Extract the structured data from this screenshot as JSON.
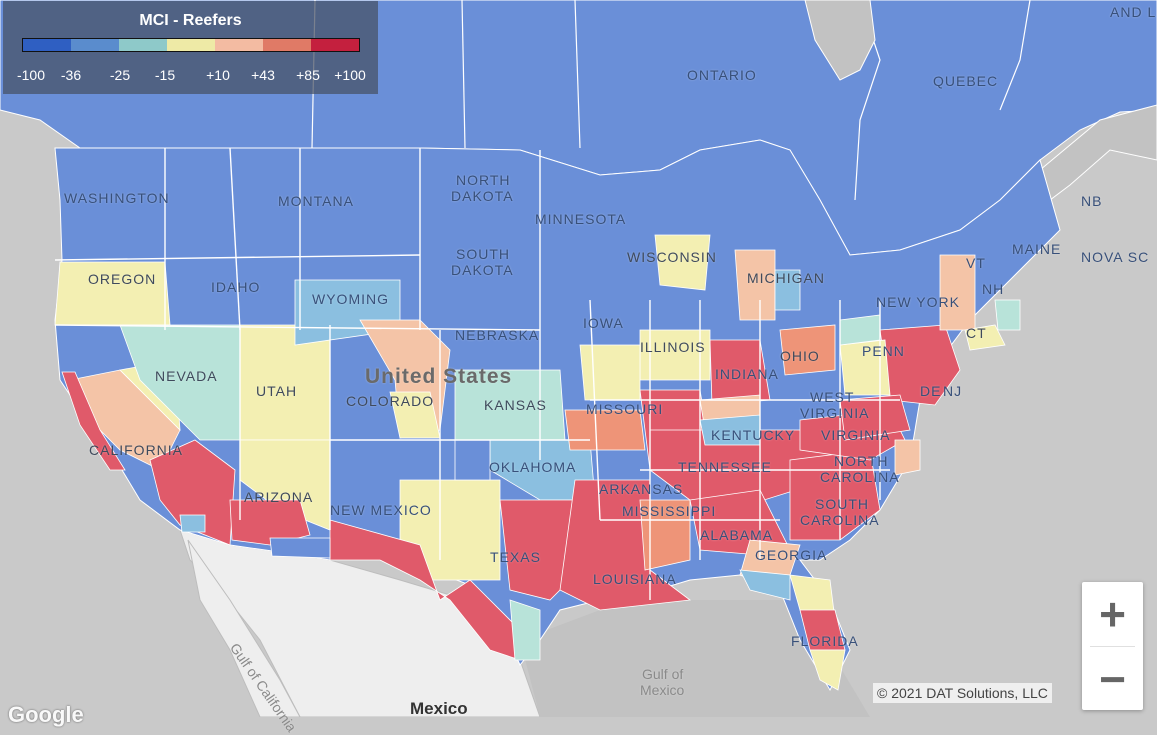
{
  "legend": {
    "title": "MCI - Reefers",
    "ticks": [
      "-100",
      "-36",
      "-25",
      "-15",
      "+10",
      "+43",
      "+85",
      "+100"
    ],
    "colors": [
      "#2f5fc2",
      "#5a8ccd",
      "#8ec9c9",
      "#eeeaa6",
      "#f3bba2",
      "#e07a66",
      "#c4203e"
    ]
  },
  "palette": {
    "strong_cold": "#6a8fd8",
    "cold": "#8bbfe0",
    "cool": "#b8e3d9",
    "neutral": "#f3efb2",
    "warm": "#f4c4a7",
    "hot": "#ee9478",
    "strong_hot": "#e05a6a",
    "land_outside": "#c9c9c9",
    "mexico_land": "#eeeeee",
    "water": "#c2c2c2"
  },
  "labels": {
    "ontario": "ONTARIO",
    "quebec": "QUEBEC",
    "newfoundland": "AND L",
    "washington": "WASHINGTON",
    "oregon": "OREGON",
    "idaho": "IDAHO",
    "montana": "MONTANA",
    "wyoming": "WYOMING",
    "nevada": "NEVADA",
    "utah": "UTAH",
    "colorado": "COLORADO",
    "california": "CALIFORNIA",
    "arizona": "ARIZONA",
    "new_mexico": "NEW MEXICO",
    "north_dakota_1": "NORTH",
    "north_dakota_2": "DAKOTA",
    "south_dakota_1": "SOUTH",
    "south_dakota_2": "DAKOTA",
    "nebraska": "NEBRASKA",
    "kansas": "KANSAS",
    "oklahoma": "OKLAHOMA",
    "texas": "TEXAS",
    "minnesota": "MINNESOTA",
    "iowa": "IOWA",
    "missouri": "MISSOURI",
    "arkansas": "ARKANSAS",
    "louisiana": "LOUISIANA",
    "wisconsin": "WISCONSIN",
    "illinois": "ILLINOIS",
    "michigan": "MICHIGAN",
    "indiana": "INDIANA",
    "ohio": "OHIO",
    "kentucky": "KENTUCKY",
    "tennessee": "TENNESSEE",
    "mississippi": "MISSISSIPPI",
    "alabama": "ALABAMA",
    "georgia": "GEORGIA",
    "florida": "FLORIDA",
    "south_carolina_1": "SOUTH",
    "south_carolina_2": "CAROLINA",
    "north_carolina_1": "NORTH",
    "north_carolina_2": "CAROLINA",
    "virginia": "VIRGINIA",
    "west_virginia_1": "WEST",
    "west_virginia_2": "VIRGINIA",
    "pennsylvania": "PENN",
    "new_york": "NEW YORK",
    "new_jersey": "NJ",
    "de": "DE",
    "ct": "CT",
    "vt": "VT",
    "nh": "NH",
    "maine": "MAINE",
    "nb": "NB",
    "nova_scotia": "NOVA SC",
    "united_states": "United States",
    "mexico": "Mexico",
    "gulf_of_mexico_1": "Gulf of",
    "gulf_of_mexico_2": "Mexico",
    "gulf_of_california": "Gulf of California"
  },
  "controls": {
    "zoom_in": "+",
    "zoom_out": "−"
  },
  "attribution": "© 2021 DAT Solutions, LLC",
  "logo": "Google"
}
